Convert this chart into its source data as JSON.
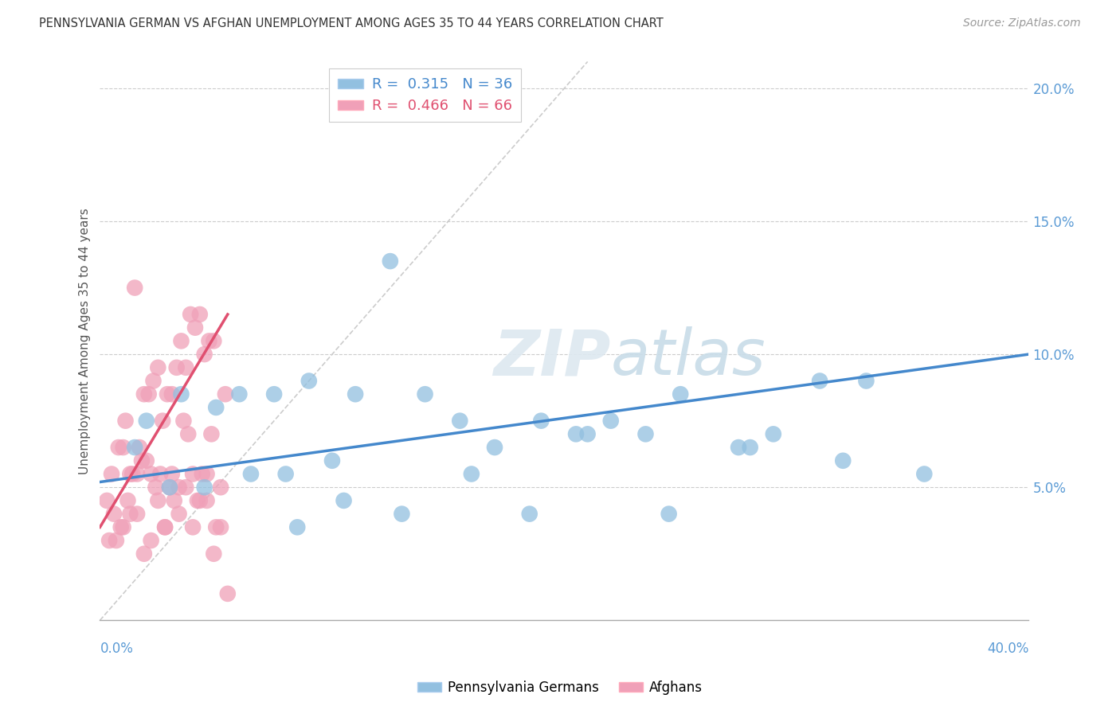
{
  "title": "PENNSYLVANIA GERMAN VS AFGHAN UNEMPLOYMENT AMONG AGES 35 TO 44 YEARS CORRELATION CHART",
  "source": "Source: ZipAtlas.com",
  "ylabel": "Unemployment Among Ages 35 to 44 years",
  "legend_label1": "Pennsylvania Germans",
  "legend_label2": "Afghans",
  "blue_color": "#92c0e0",
  "pink_color": "#f0a0b8",
  "blue_line_color": "#4488cc",
  "pink_line_color": "#e05070",
  "r_blue": 0.315,
  "n_blue": 36,
  "r_pink": 0.466,
  "n_pink": 66,
  "xlim": [
    0,
    40
  ],
  "ylim": [
    0,
    21
  ],
  "yticks": [
    5,
    10,
    15,
    20
  ],
  "ytick_labels": [
    "5.0%",
    "10.0%",
    "15.0%",
    "20.0%"
  ],
  "blue_scatter_x": [
    1.5,
    2.0,
    3.5,
    5.0,
    6.0,
    7.5,
    8.0,
    9.0,
    10.0,
    11.0,
    12.5,
    14.0,
    15.5,
    17.0,
    19.0,
    20.5,
    22.0,
    23.5,
    25.0,
    27.5,
    29.0,
    31.0,
    33.0,
    35.5,
    3.0,
    4.5,
    6.5,
    8.5,
    10.5,
    13.0,
    16.0,
    18.5,
    21.0,
    24.5,
    28.0,
    32.0
  ],
  "blue_scatter_y": [
    6.5,
    7.5,
    8.5,
    8.0,
    8.5,
    8.5,
    5.5,
    9.0,
    6.0,
    8.5,
    13.5,
    8.5,
    7.5,
    6.5,
    7.5,
    7.0,
    7.5,
    7.0,
    8.5,
    6.5,
    7.0,
    9.0,
    9.0,
    5.5,
    5.0,
    5.0,
    5.5,
    3.5,
    4.5,
    4.0,
    5.5,
    4.0,
    7.0,
    4.0,
    6.5,
    6.0
  ],
  "pink_scatter_x": [
    0.5,
    0.8,
    1.0,
    1.1,
    1.3,
    1.5,
    1.7,
    1.9,
    2.1,
    2.3,
    2.5,
    2.7,
    2.9,
    3.1,
    3.3,
    3.5,
    3.7,
    3.9,
    4.1,
    4.3,
    4.5,
    4.7,
    4.9,
    0.3,
    0.6,
    0.9,
    1.2,
    1.4,
    1.6,
    1.8,
    2.0,
    2.2,
    2.4,
    2.6,
    2.8,
    3.0,
    3.2,
    3.4,
    3.6,
    3.8,
    4.0,
    4.2,
    4.4,
    4.6,
    4.8,
    5.0,
    5.2,
    5.4,
    0.4,
    0.7,
    1.0,
    1.3,
    1.6,
    1.9,
    2.2,
    2.5,
    2.8,
    3.1,
    3.4,
    3.7,
    4.0,
    4.3,
    4.6,
    4.9,
    5.2,
    5.5
  ],
  "pink_scatter_y": [
    5.5,
    6.5,
    6.5,
    7.5,
    5.5,
    12.5,
    6.5,
    8.5,
    8.5,
    9.0,
    9.5,
    7.5,
    8.5,
    8.5,
    9.5,
    10.5,
    9.5,
    11.5,
    11.0,
    11.5,
    10.0,
    10.5,
    10.5,
    4.5,
    4.0,
    3.5,
    4.5,
    5.5,
    5.5,
    6.0,
    6.0,
    5.5,
    5.0,
    5.5,
    3.5,
    5.0,
    4.5,
    5.0,
    7.5,
    7.0,
    5.5,
    4.5,
    5.5,
    5.5,
    7.0,
    3.5,
    5.0,
    8.5,
    3.0,
    3.0,
    3.5,
    4.0,
    4.0,
    2.5,
    3.0,
    4.5,
    3.5,
    5.5,
    4.0,
    5.0,
    3.5,
    4.5,
    4.5,
    2.5,
    3.5,
    1.0
  ],
  "diag_line_x": [
    0,
    21
  ],
  "diag_line_y": [
    0,
    21
  ],
  "blue_trend_x": [
    0,
    40
  ],
  "blue_trend_y": [
    5.2,
    10.0
  ],
  "pink_trend_x": [
    0,
    5.5
  ],
  "pink_trend_y": [
    3.5,
    11.5
  ]
}
